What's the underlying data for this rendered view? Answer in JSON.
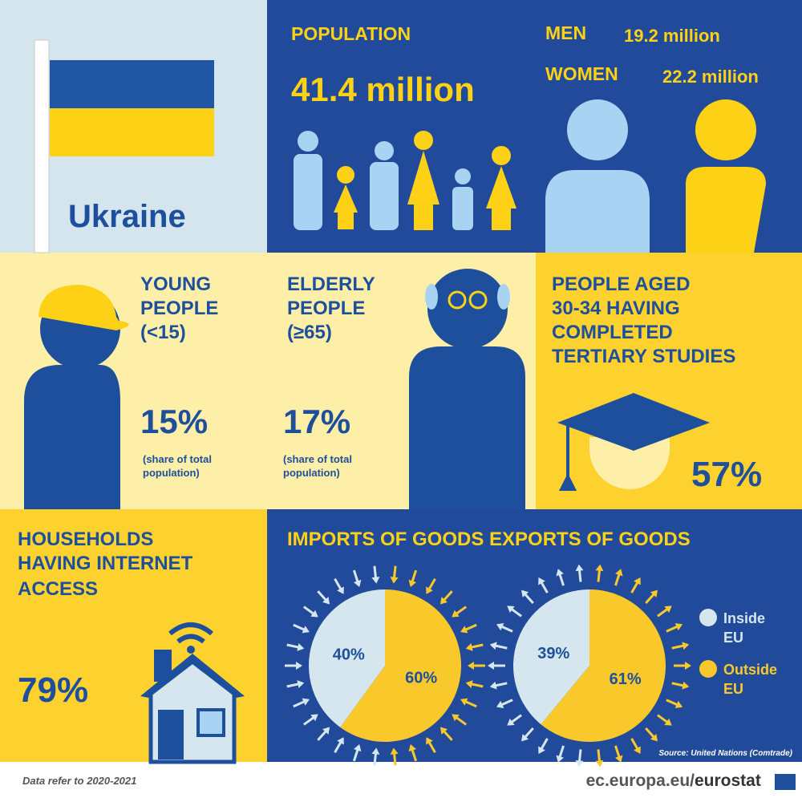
{
  "country": {
    "name": "Ukraine"
  },
  "population": {
    "title": "POPULATION",
    "total": "41.4 million",
    "men_label": "MEN",
    "men": "19.2 million",
    "women_label": "WOMEN",
    "women": "22.2 million"
  },
  "young": {
    "title": [
      "YOUNG",
      "PEOPLE",
      "(<15)"
    ],
    "value": "15%",
    "note": [
      "(share of total",
      "population)"
    ]
  },
  "elderly": {
    "title": [
      "ELDERLY",
      "PEOPLE",
      "(≥65)"
    ],
    "value": "17%",
    "note": [
      "(share of total",
      "population)"
    ]
  },
  "tertiary": {
    "title": [
      "PEOPLE AGED",
      "30-34 HAVING",
      "COMPLETED",
      "TERTIARY STUDIES"
    ],
    "value": "57%"
  },
  "internet": {
    "title": [
      "HOUSEHOLDS",
      "HAVING INTERNET",
      "ACCESS"
    ],
    "value": "79%"
  },
  "trade": {
    "imports": {
      "title": "IMPORTS OF GOODS",
      "values": [
        40,
        60
      ],
      "value_labels": [
        "40%",
        "60%"
      ]
    },
    "exports": {
      "title": "EXPORTS OF GOODS",
      "values": [
        39,
        61
      ],
      "value_labels": [
        "39%",
        "61%"
      ]
    },
    "legend": [
      {
        "label": [
          "Inside",
          "EU"
        ],
        "color": "#d6e6ee"
      },
      {
        "label": [
          "Outside",
          "EU"
        ],
        "color": "#f9c92c"
      }
    ],
    "source": "Source: United Nations (Comtrade)"
  },
  "footer": {
    "note": "Data refer to 2020-2021",
    "site": "ec.europa.eu/",
    "brand": "eurostat"
  }
}
